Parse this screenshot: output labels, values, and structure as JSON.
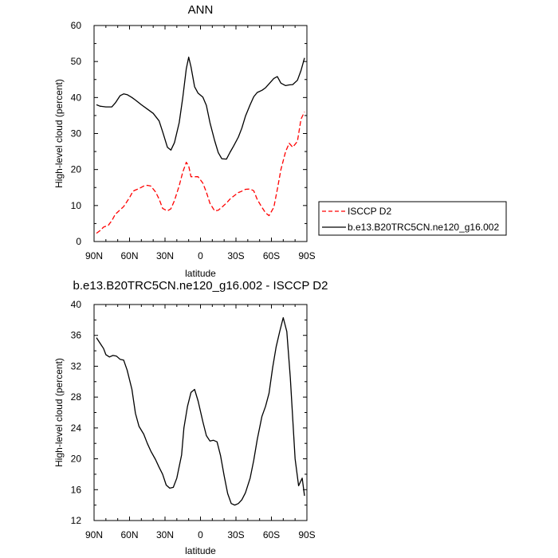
{
  "chart_data": [
    {
      "type": "line",
      "title": "ANN",
      "xlabel": "latitude",
      "ylabel": "High-level cloud (percent)",
      "xlim": [
        90,
        -90
      ],
      "ylim": [
        0,
        60
      ],
      "xticks": [
        90,
        60,
        30,
        0,
        -30,
        -60,
        -90
      ],
      "xtick_labels": [
        "90N",
        "60N",
        "30N",
        "0",
        "30S",
        "60S",
        "90S"
      ],
      "yticks": [
        0,
        10,
        20,
        30,
        40,
        50,
        60
      ],
      "ytick_labels": [
        "0",
        "10",
        "20",
        "30",
        "40",
        "50",
        "60"
      ],
      "legend_position": "right",
      "series": [
        {
          "name": "ISCCP D2",
          "color": "#ff0000",
          "dash": "dashed",
          "x": [
            88,
            85,
            82,
            78,
            75,
            72,
            68,
            65,
            60,
            57,
            55,
            52,
            48,
            45,
            42,
            38,
            35,
            32,
            28,
            25,
            22,
            18,
            15,
            12,
            10,
            8,
            5,
            2,
            -2,
            -5,
            -8,
            -12,
            -15,
            -18,
            -22,
            -25,
            -28,
            -32,
            -35,
            -38,
            -42,
            -45,
            -48,
            -52,
            -55,
            -58,
            -62,
            -65,
            -68,
            -72,
            -75,
            -78,
            -82,
            -85,
            -88
          ],
          "y": [
            2.3,
            3.0,
            4.0,
            4.5,
            5.8,
            7.6,
            8.8,
            9.7,
            12.2,
            14.0,
            14.3,
            14.7,
            15.4,
            15.6,
            15.4,
            13.8,
            11.8,
            9.2,
            8.5,
            9.1,
            11.4,
            15.5,
            19.3,
            22.0,
            21.0,
            18.0,
            18.0,
            18.0,
            16.2,
            13.7,
            10.6,
            8.5,
            8.7,
            9.5,
            10.7,
            11.8,
            12.6,
            13.6,
            14.0,
            14.5,
            14.6,
            14.1,
            11.7,
            9.5,
            8.0,
            7.2,
            9.5,
            14.5,
            20.0,
            25.0,
            27.3,
            26.2,
            27.8,
            34.0,
            36.0
          ]
        },
        {
          "name": "b.e13.B20TRC5CN.ne120_g16.002",
          "color": "#000000",
          "dash": "solid",
          "x": [
            88,
            85,
            80,
            75,
            72,
            68,
            65,
            62,
            58,
            55,
            50,
            45,
            40,
            35,
            32,
            28,
            25,
            22,
            18,
            15,
            12,
            10,
            8,
            5,
            2,
            -2,
            -5,
            -8,
            -12,
            -15,
            -18,
            -22,
            -25,
            -28,
            -32,
            -35,
            -38,
            -42,
            -45,
            -48,
            -52,
            -55,
            -58,
            -62,
            -65,
            -68,
            -72,
            -75,
            -78,
            -82,
            -85,
            -88
          ],
          "y": [
            38.0,
            37.6,
            37.4,
            37.4,
            38.5,
            40.5,
            41.0,
            40.8,
            40.0,
            39.3,
            38.0,
            36.8,
            35.6,
            33.5,
            30.5,
            26.2,
            25.4,
            27.5,
            33.0,
            40.0,
            48.0,
            51.2,
            48.5,
            43.0,
            41.2,
            40.1,
            37.8,
            33.0,
            28.0,
            24.7,
            23.0,
            22.9,
            24.8,
            26.5,
            29.0,
            31.5,
            34.8,
            38.0,
            40.2,
            41.4,
            42.0,
            42.7,
            43.8,
            45.3,
            45.8,
            44.0,
            43.3,
            43.5,
            43.6,
            44.8,
            47.5,
            51.0
          ]
        }
      ]
    },
    {
      "type": "line",
      "title": "b.e13.B20TRC5CN.ne120_g16.002 - ISCCP D2",
      "xlabel": "latitude",
      "ylabel": "High-level cloud (percent)",
      "xlim": [
        90,
        -90
      ],
      "ylim": [
        12,
        40
      ],
      "xticks": [
        90,
        60,
        30,
        0,
        -30,
        -60,
        -90
      ],
      "xtick_labels": [
        "90N",
        "60N",
        "30N",
        "0",
        "30S",
        "60S",
        "90S"
      ],
      "yticks": [
        12,
        16,
        20,
        24,
        28,
        32,
        36,
        40
      ],
      "ytick_labels": [
        "12",
        "16",
        "20",
        "24",
        "28",
        "32",
        "36",
        "40"
      ],
      "series": [
        {
          "color": "#000000",
          "dash": "solid",
          "x": [
            88,
            85,
            82,
            80,
            77,
            74,
            71,
            68,
            65,
            62,
            58,
            55,
            52,
            48,
            45,
            42,
            38,
            35,
            32,
            29,
            26,
            23,
            20,
            16,
            14,
            11,
            8,
            5,
            2,
            -2,
            -5,
            -8,
            -11,
            -14,
            -17,
            -20,
            -23,
            -26,
            -29,
            -32,
            -35,
            -38,
            -42,
            -45,
            -48,
            -52,
            -55,
            -58,
            -61,
            -64,
            -67,
            -70,
            -73,
            -76,
            -80,
            -83,
            -86,
            -88
          ],
          "y": [
            35.7,
            35.0,
            34.3,
            33.5,
            33.2,
            33.4,
            33.3,
            32.9,
            32.8,
            31.5,
            29.0,
            25.9,
            24.2,
            23.2,
            22.0,
            21.0,
            19.9,
            18.9,
            18.0,
            16.6,
            16.2,
            16.3,
            17.5,
            20.5,
            24.0,
            26.8,
            28.6,
            29.0,
            27.5,
            24.8,
            23.0,
            22.3,
            22.4,
            22.2,
            20.4,
            17.8,
            15.5,
            14.2,
            14.0,
            14.2,
            14.7,
            15.6,
            17.5,
            19.8,
            22.5,
            25.5,
            26.8,
            28.5,
            31.8,
            34.5,
            36.5,
            38.3,
            36.5,
            30.5,
            20.0,
            16.5,
            17.5,
            15.2
          ]
        }
      ]
    }
  ]
}
